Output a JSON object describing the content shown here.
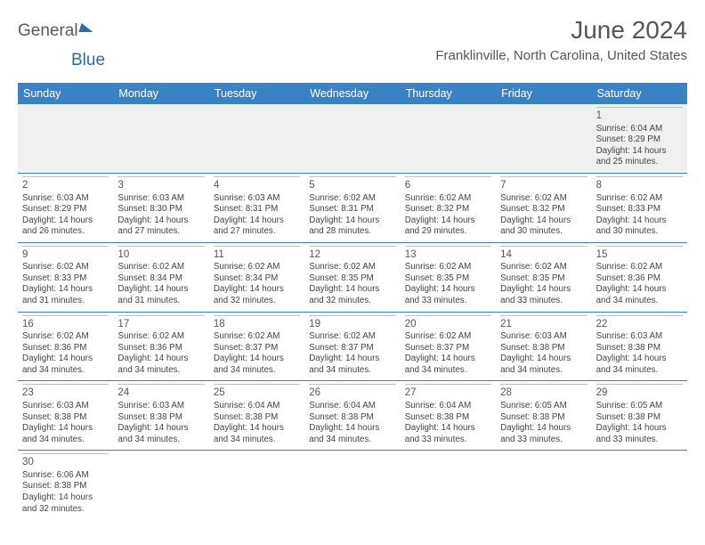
{
  "logo": {
    "text1": "General",
    "text2": "Blue"
  },
  "title": "June 2024",
  "location": "Franklinville, North Carolina, United States",
  "colors": {
    "header_bg": "#3b82c4",
    "header_text": "#ffffff",
    "rule": "#3b82c4",
    "empty_bg": "#f0f0f0",
    "text": "#444444",
    "title_text": "#555555"
  },
  "day_names": [
    "Sunday",
    "Monday",
    "Tuesday",
    "Wednesday",
    "Thursday",
    "Friday",
    "Saturday"
  ],
  "weeks": [
    [
      null,
      null,
      null,
      null,
      null,
      null,
      {
        "d": "1",
        "sr": "6:04 AM",
        "ss": "8:29 PM",
        "dl": "14 hours and 25 minutes."
      }
    ],
    [
      {
        "d": "2",
        "sr": "6:03 AM",
        "ss": "8:29 PM",
        "dl": "14 hours and 26 minutes."
      },
      {
        "d": "3",
        "sr": "6:03 AM",
        "ss": "8:30 PM",
        "dl": "14 hours and 27 minutes."
      },
      {
        "d": "4",
        "sr": "6:03 AM",
        "ss": "8:31 PM",
        "dl": "14 hours and 27 minutes."
      },
      {
        "d": "5",
        "sr": "6:02 AM",
        "ss": "8:31 PM",
        "dl": "14 hours and 28 minutes."
      },
      {
        "d": "6",
        "sr": "6:02 AM",
        "ss": "8:32 PM",
        "dl": "14 hours and 29 minutes."
      },
      {
        "d": "7",
        "sr": "6:02 AM",
        "ss": "8:32 PM",
        "dl": "14 hours and 30 minutes."
      },
      {
        "d": "8",
        "sr": "6:02 AM",
        "ss": "8:33 PM",
        "dl": "14 hours and 30 minutes."
      }
    ],
    [
      {
        "d": "9",
        "sr": "6:02 AM",
        "ss": "8:33 PM",
        "dl": "14 hours and 31 minutes."
      },
      {
        "d": "10",
        "sr": "6:02 AM",
        "ss": "8:34 PM",
        "dl": "14 hours and 31 minutes."
      },
      {
        "d": "11",
        "sr": "6:02 AM",
        "ss": "8:34 PM",
        "dl": "14 hours and 32 minutes."
      },
      {
        "d": "12",
        "sr": "6:02 AM",
        "ss": "8:35 PM",
        "dl": "14 hours and 32 minutes."
      },
      {
        "d": "13",
        "sr": "6:02 AM",
        "ss": "8:35 PM",
        "dl": "14 hours and 33 minutes."
      },
      {
        "d": "14",
        "sr": "6:02 AM",
        "ss": "8:35 PM",
        "dl": "14 hours and 33 minutes."
      },
      {
        "d": "15",
        "sr": "6:02 AM",
        "ss": "8:36 PM",
        "dl": "14 hours and 34 minutes."
      }
    ],
    [
      {
        "d": "16",
        "sr": "6:02 AM",
        "ss": "8:36 PM",
        "dl": "14 hours and 34 minutes."
      },
      {
        "d": "17",
        "sr": "6:02 AM",
        "ss": "8:36 PM",
        "dl": "14 hours and 34 minutes."
      },
      {
        "d": "18",
        "sr": "6:02 AM",
        "ss": "8:37 PM",
        "dl": "14 hours and 34 minutes."
      },
      {
        "d": "19",
        "sr": "6:02 AM",
        "ss": "8:37 PM",
        "dl": "14 hours and 34 minutes."
      },
      {
        "d": "20",
        "sr": "6:02 AM",
        "ss": "8:37 PM",
        "dl": "14 hours and 34 minutes."
      },
      {
        "d": "21",
        "sr": "6:03 AM",
        "ss": "8:38 PM",
        "dl": "14 hours and 34 minutes."
      },
      {
        "d": "22",
        "sr": "6:03 AM",
        "ss": "8:38 PM",
        "dl": "14 hours and 34 minutes."
      }
    ],
    [
      {
        "d": "23",
        "sr": "6:03 AM",
        "ss": "8:38 PM",
        "dl": "14 hours and 34 minutes."
      },
      {
        "d": "24",
        "sr": "6:03 AM",
        "ss": "8:38 PM",
        "dl": "14 hours and 34 minutes."
      },
      {
        "d": "25",
        "sr": "6:04 AM",
        "ss": "8:38 PM",
        "dl": "14 hours and 34 minutes."
      },
      {
        "d": "26",
        "sr": "6:04 AM",
        "ss": "8:38 PM",
        "dl": "14 hours and 34 minutes."
      },
      {
        "d": "27",
        "sr": "6:04 AM",
        "ss": "8:38 PM",
        "dl": "14 hours and 33 minutes."
      },
      {
        "d": "28",
        "sr": "6:05 AM",
        "ss": "8:38 PM",
        "dl": "14 hours and 33 minutes."
      },
      {
        "d": "29",
        "sr": "6:05 AM",
        "ss": "8:38 PM",
        "dl": "14 hours and 33 minutes."
      }
    ],
    [
      {
        "d": "30",
        "sr": "6:06 AM",
        "ss": "8:38 PM",
        "dl": "14 hours and 32 minutes."
      },
      null,
      null,
      null,
      null,
      null,
      null
    ]
  ],
  "labels": {
    "sunrise": "Sunrise:",
    "sunset": "Sunset:",
    "daylight": "Daylight:"
  }
}
